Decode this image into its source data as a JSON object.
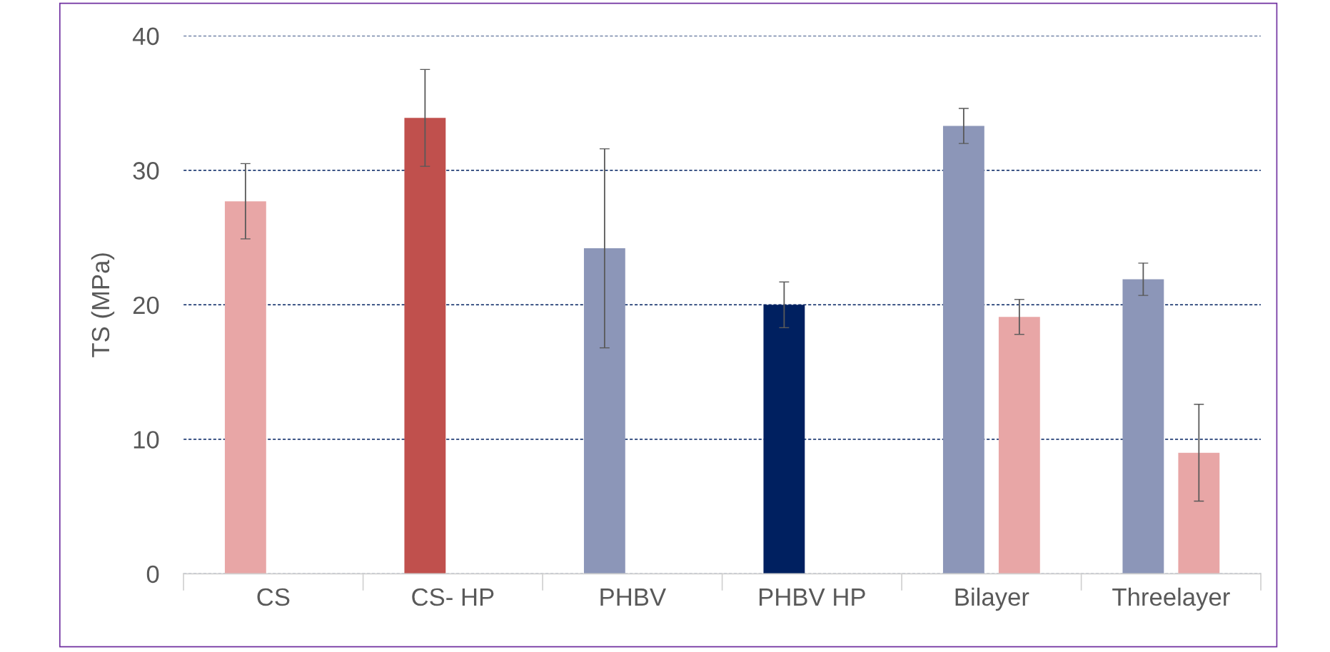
{
  "chart_data": {
    "type": "bar",
    "ylabel": "TS (MPa)",
    "categories": [
      "CS",
      "CS- HP",
      "PHBV",
      "PHBV HP",
      "Bilayer",
      "Threelayer"
    ],
    "series": [
      {
        "colors": [
          "#e8a6a6",
          "#c0504d",
          "#8c96b8",
          "#002060",
          "#8c96b8",
          "#8c96b8"
        ],
        "values": [
          27.7,
          33.9,
          24.2,
          20.0,
          33.3,
          21.9
        ],
        "errors": [
          2.8,
          3.6,
          7.4,
          1.7,
          1.3,
          1.2
        ]
      },
      {
        "colors": [
          null,
          null,
          null,
          null,
          "#e8a6a6",
          "#e8a6a6"
        ],
        "values": [
          null,
          null,
          null,
          null,
          19.1,
          9.0
        ],
        "errors": [
          null,
          null,
          null,
          null,
          1.3,
          3.6
        ]
      }
    ],
    "ylim": [
      0,
      40
    ],
    "yticks": [
      0,
      10,
      20,
      30,
      40
    ],
    "grid": "y"
  }
}
